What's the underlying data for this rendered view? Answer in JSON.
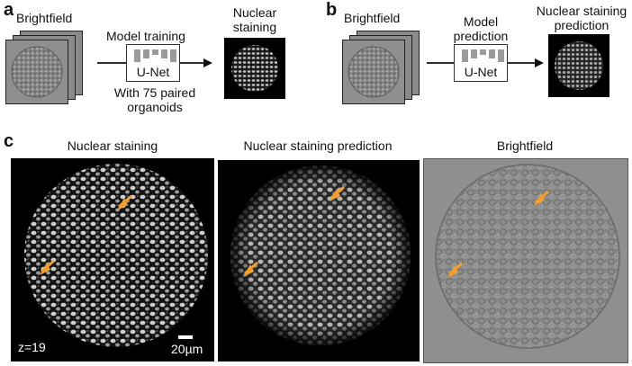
{
  "panel_a": {
    "letter": "a",
    "input_label": "Brightfield",
    "step_label": "Model training",
    "model_name": "U-Net",
    "note_line1": "With 75 paired",
    "note_line2": "organoids",
    "output_label_line1": "Nuclear",
    "output_label_line2": "staining"
  },
  "panel_b": {
    "letter": "b",
    "input_label": "Brightfield",
    "step_label_line1": "Model",
    "step_label_line2": "prediction",
    "model_name": "U-Net",
    "output_label_line1": "Nuclear staining",
    "output_label_line2": "prediction"
  },
  "panel_c": {
    "letter": "c",
    "image1_title": "Nuclear staining",
    "image2_title": "Nuclear staining prediction",
    "image3_title": "Brightfield",
    "z_label": "z=19",
    "scale_label": "20µm",
    "arrow_color": "#f0a030"
  }
}
